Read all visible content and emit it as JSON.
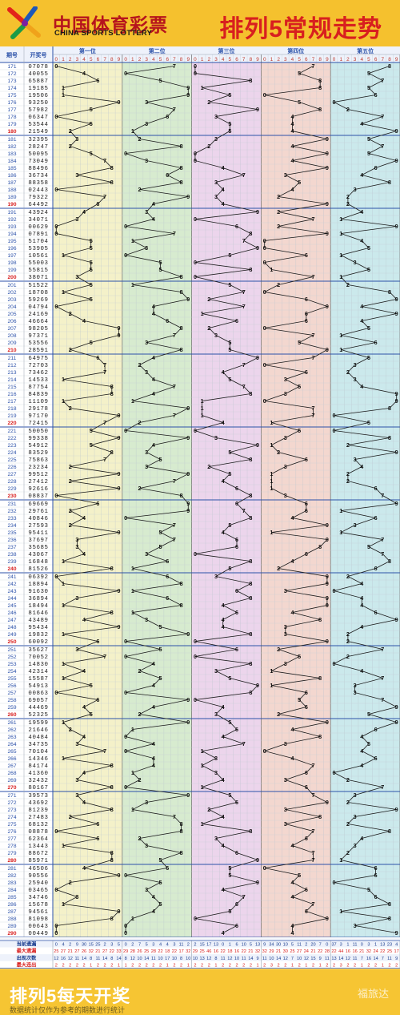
{
  "header": {
    "brand_cn": "中国体育彩票",
    "brand_en": "CHINA SPORTS LOTTERY",
    "title": "排列5常规走势"
  },
  "footer": {
    "title": "排列5每天开奖",
    "subtitle": "数据统计仅作为参考的期数进行统计",
    "watermark": "福旅达"
  },
  "colors": {
    "title": "#d81f1f",
    "zone_fills": [
      "#f4f1c9",
      "#d7ebcf",
      "#ecd5ec",
      "#f3d7cf",
      "#cbe9ec"
    ],
    "line": "#1a1a1a",
    "header_blue": "#2c52a9"
  },
  "chart_data": {
    "type": "table",
    "columns": {
      "period": "期号",
      "number": "开奖号",
      "positions": [
        "第一位",
        "第二位",
        "第三位",
        "第四位",
        "第五位"
      ],
      "digits": [
        "0",
        "1",
        "2",
        "3",
        "4",
        "5",
        "6",
        "7",
        "8",
        "9"
      ]
    },
    "rows": [
      [
        "171",
        "07078"
      ],
      [
        "172",
        "40055"
      ],
      [
        "173",
        "65887"
      ],
      [
        "174",
        "19185"
      ],
      [
        "175",
        "19506"
      ],
      [
        "176",
        "93250"
      ],
      [
        "177",
        "57982"
      ],
      [
        "178",
        "06347"
      ],
      [
        "179",
        "53544"
      ],
      [
        "180",
        "21549"
      ],
      [
        "181",
        "32395"
      ],
      [
        "182",
        "28247"
      ],
      [
        "183",
        "50095"
      ],
      [
        "184",
        "73049"
      ],
      [
        "185",
        "88496"
      ],
      [
        "186",
        "36734"
      ],
      [
        "187",
        "88358"
      ],
      [
        "188",
        "02443"
      ],
      [
        "189",
        "79322"
      ],
      [
        "190",
        "64492"
      ],
      [
        "191",
        "43924"
      ],
      [
        "192",
        "34071"
      ],
      [
        "193",
        "00629"
      ],
      [
        "194",
        "07891"
      ],
      [
        "195",
        "51704"
      ],
      [
        "196",
        "53905"
      ],
      [
        "197",
        "10561"
      ],
      [
        "198",
        "55003"
      ],
      [
        "199",
        "55815"
      ],
      [
        "200",
        "38071"
      ],
      [
        "201",
        "51522"
      ],
      [
        "202",
        "18708"
      ],
      [
        "203",
        "59269"
      ],
      [
        "204",
        "04794"
      ],
      [
        "205",
        "24169"
      ],
      [
        "206",
        "46664"
      ],
      [
        "207",
        "98205"
      ],
      [
        "208",
        "97371"
      ],
      [
        "209",
        "53556"
      ],
      [
        "210",
        "28591"
      ],
      [
        "211",
        "64975"
      ],
      [
        "212",
        "72703"
      ],
      [
        "213",
        "73462"
      ],
      [
        "214",
        "14533"
      ],
      [
        "215",
        "87754"
      ],
      [
        "216",
        "84839"
      ],
      [
        "217",
        "11109"
      ],
      [
        "218",
        "29178"
      ],
      [
        "219",
        "97170"
      ],
      [
        "220",
        "72415"
      ],
      [
        "221",
        "50050"
      ],
      [
        "222",
        "99338"
      ],
      [
        "223",
        "54912"
      ],
      [
        "224",
        "83529"
      ],
      [
        "225",
        "75863"
      ],
      [
        "226",
        "23234"
      ],
      [
        "227",
        "99512"
      ],
      [
        "228",
        "27412"
      ],
      [
        "229",
        "92616"
      ],
      [
        "230",
        "08837"
      ],
      [
        "231",
        "69669"
      ],
      [
        "232",
        "29761"
      ],
      [
        "233",
        "40846"
      ],
      [
        "234",
        "27593"
      ],
      [
        "235",
        "95411"
      ],
      [
        "236",
        "37697"
      ],
      [
        "237",
        "35685"
      ],
      [
        "238",
        "43067"
      ],
      [
        "239",
        "16848"
      ],
      [
        "240",
        "81526"
      ],
      [
        "241",
        "06392"
      ],
      [
        "242",
        "18894"
      ],
      [
        "243",
        "91630"
      ],
      [
        "244",
        "36894"
      ],
      [
        "245",
        "18494"
      ],
      [
        "246",
        "81646"
      ],
      [
        "247",
        "43489"
      ],
      [
        "248",
        "95434"
      ],
      [
        "249",
        "19832"
      ],
      [
        "250",
        "60092"
      ],
      [
        "251",
        "35627"
      ],
      [
        "252",
        "70052"
      ],
      [
        "253",
        "14830"
      ],
      [
        "254",
        "42314"
      ],
      [
        "255",
        "15587"
      ],
      [
        "256",
        "54913"
      ],
      [
        "257",
        "00863"
      ],
      [
        "258",
        "69057"
      ],
      [
        "259",
        "44469"
      ],
      [
        "260",
        "52325"
      ],
      [
        "261",
        "19599"
      ],
      [
        "262",
        "21646"
      ],
      [
        "263",
        "40484"
      ],
      [
        "264",
        "34735"
      ],
      [
        "265",
        "70104"
      ],
      [
        "266",
        "14346"
      ],
      [
        "267",
        "84174"
      ],
      [
        "268",
        "41360"
      ],
      [
        "269",
        "32432"
      ],
      [
        "270",
        "80167"
      ],
      [
        "271",
        "39573"
      ],
      [
        "272",
        "43692"
      ],
      [
        "273",
        "81239"
      ],
      [
        "274",
        "27483"
      ],
      [
        "275",
        "68132"
      ],
      [
        "276",
        "08878"
      ],
      [
        "277",
        "62364"
      ],
      [
        "278",
        "13443"
      ],
      [
        "279",
        "88672"
      ],
      [
        "280",
        "85971"
      ],
      [
        "281",
        "46506"
      ],
      [
        "282",
        "90556"
      ],
      [
        "283",
        "25940"
      ],
      [
        "284",
        "03465"
      ],
      [
        "285",
        "34746"
      ],
      [
        "286",
        "15678"
      ],
      [
        "287",
        "94561"
      ],
      [
        "288",
        "81098"
      ],
      [
        "289",
        "00643"
      ],
      [
        "290",
        "00449"
      ]
    ],
    "summary": [
      {
        "label": "当前遗漏",
        "values": [
          "0",
          "4",
          "2",
          "9",
          "30",
          "15",
          "25",
          "2",
          "3",
          "5",
          "0",
          "2",
          "7",
          "5",
          "3",
          "4",
          "4",
          "3",
          "11",
          "2",
          "2",
          "15",
          "17",
          "13",
          "0",
          "1",
          "6",
          "10",
          "5",
          "13",
          "9",
          "34",
          "30",
          "10",
          "5",
          "11",
          "2",
          "20",
          "7",
          "0",
          "37",
          "3",
          "1",
          "11",
          "0",
          "3",
          "1",
          "13",
          "23",
          "4"
        ]
      },
      {
        "label": "最大遗漏",
        "values": [
          "25",
          "27",
          "21",
          "27",
          "26",
          "32",
          "21",
          "27",
          "22",
          "33",
          "29",
          "28",
          "26",
          "25",
          "28",
          "22",
          "18",
          "22",
          "17",
          "32",
          "29",
          "25",
          "46",
          "16",
          "22",
          "18",
          "16",
          "22",
          "21",
          "32",
          "32",
          "29",
          "21",
          "30",
          "25",
          "27",
          "24",
          "21",
          "22",
          "28",
          "22",
          "44",
          "16",
          "16",
          "21",
          "32",
          "24",
          "22",
          "25",
          "17"
        ]
      },
      {
        "label": "出现次数",
        "values": [
          "12",
          "16",
          "12",
          "11",
          "14",
          "8",
          "11",
          "14",
          "8",
          "14",
          "8",
          "12",
          "10",
          "14",
          "11",
          "10",
          "17",
          "10",
          "8",
          "10",
          "10",
          "13",
          "12",
          "8",
          "11",
          "12",
          "10",
          "11",
          "14",
          "9",
          "11",
          "10",
          "14",
          "12",
          "7",
          "10",
          "12",
          "15",
          "9",
          "11",
          "13",
          "14",
          "12",
          "11",
          "7",
          "16",
          "14",
          "7",
          "11",
          "9"
        ]
      },
      {
        "label": "最大连出",
        "values": [
          "2",
          "2",
          "2",
          "2",
          "2",
          "1",
          "2",
          "2",
          "2",
          "1",
          "1",
          "2",
          "2",
          "2",
          "2",
          "2",
          "1",
          "2",
          "2",
          "1",
          "2",
          "2",
          "2",
          "1",
          "2",
          "2",
          "2",
          "2",
          "2",
          "1",
          "2",
          "3",
          "2",
          "2",
          "1",
          "2",
          "1",
          "2",
          "1",
          "2",
          "2",
          "3",
          "2",
          "2",
          "1",
          "2",
          "2",
          "1",
          "2",
          "2"
        ]
      }
    ]
  }
}
